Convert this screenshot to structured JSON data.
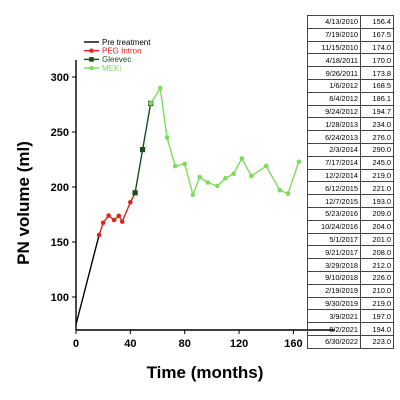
{
  "chart_data": {
    "type": "line",
    "title": "",
    "xlabel": "Time (months)",
    "ylabel": "PN volume (ml)",
    "xlim": [
      0,
      170
    ],
    "ylim": [
      70,
      310
    ],
    "xticks": [
      "0",
      "40",
      "80",
      "120",
      "160"
    ],
    "yticks": [
      "100",
      "150",
      "200",
      "250",
      "300"
    ],
    "legend_position": "top-left",
    "series": [
      {
        "name": "Pre treatment",
        "color": "#000000",
        "marker": "none",
        "x": [
          0,
          17
        ],
        "y": [
          75,
          156.4
        ]
      },
      {
        "name": "PEG Intron",
        "color": "#d9261c",
        "marker": "circle",
        "x": [
          17,
          20,
          24,
          28,
          31.5,
          34,
          40,
          43.5
        ],
        "y": [
          156.4,
          167.5,
          174.0,
          170.0,
          173.8,
          168.5,
          186.1,
          194.7
        ]
      },
      {
        "name": "Gleevec",
        "color": "#1a4d1a",
        "marker": "square",
        "x": [
          43.5,
          49,
          55
        ],
        "y": [
          194.7,
          234.0,
          276.0
        ]
      },
      {
        "name": "MEKi",
        "color": "#7ddc5a",
        "marker": "circle",
        "x": [
          55,
          62,
          67,
          73,
          80,
          86,
          91,
          97,
          104,
          110,
          116,
          122,
          129,
          140,
          150,
          156,
          164
        ],
        "y": [
          276.0,
          290.0,
          245.0,
          219.0,
          221.0,
          193.0,
          209.0,
          204.0,
          201.0,
          208.0,
          212.0,
          226.0,
          210.0,
          219.0,
          197.0,
          194.0,
          223.0
        ]
      }
    ]
  },
  "table": {
    "rows": [
      [
        "4/13/2010",
        "156.4"
      ],
      [
        "7/19/2010",
        "167.5"
      ],
      [
        "11/15/2010",
        "174.0"
      ],
      [
        "4/18/2011",
        "170.0"
      ],
      [
        "9/26/2011",
        "173.8"
      ],
      [
        "1/6/2012",
        "168.5"
      ],
      [
        "6/4/2012",
        "186.1"
      ],
      [
        "9/24/2012",
        "194.7"
      ],
      [
        "1/28/2013",
        "234.0"
      ],
      [
        "6/24/2013",
        "276.0"
      ],
      [
        "2/3/2014",
        "290.0"
      ],
      [
        "7/17/2014",
        "245.0"
      ],
      [
        "12/2/2014",
        "219.0"
      ],
      [
        "6/12/2015",
        "221.0"
      ],
      [
        "12/7/2015",
        "193.0"
      ],
      [
        "5/23/2016",
        "209.0"
      ],
      [
        "10/24/2016",
        "204.0"
      ],
      [
        "5/1/2017",
        "201.0"
      ],
      [
        "9/21/2017",
        "208.0"
      ],
      [
        "3/29/2018",
        "212.0"
      ],
      [
        "9/10/2018",
        "226.0"
      ],
      [
        "2/19/2019",
        "210.0"
      ],
      [
        "9/30/2019",
        "219.0"
      ],
      [
        "3/9/2021",
        "197.0"
      ],
      [
        "8/2/2021",
        "194.0"
      ],
      [
        "6/30/2022",
        "223.0"
      ]
    ]
  }
}
